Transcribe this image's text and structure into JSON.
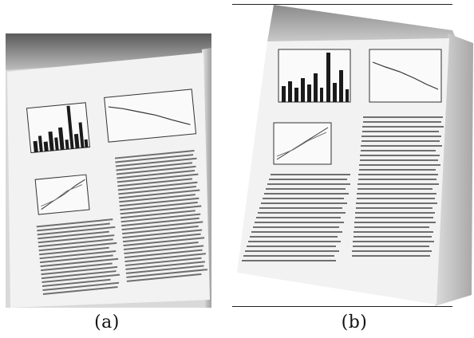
{
  "figure": {
    "captions": [
      "(a)",
      "(b)"
    ]
  },
  "palette": {
    "background": "#ffffff",
    "page_paper": "#f2f2f2",
    "shadow_dark": "#4a4a4a",
    "shadow_light": "#b8b8b8",
    "ink": "#222222",
    "text_lines": "#6f6f6f"
  }
}
